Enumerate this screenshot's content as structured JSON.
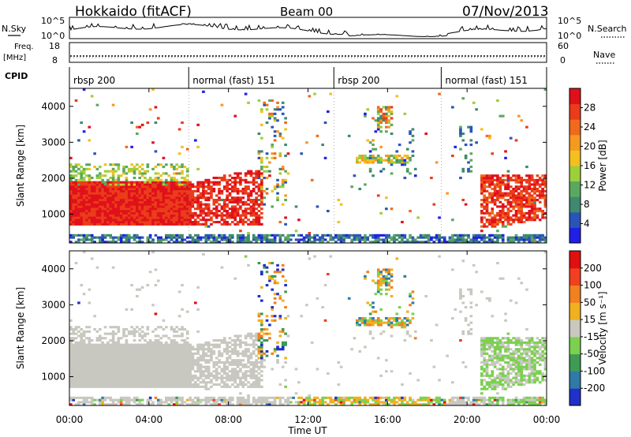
{
  "header": {
    "station": "Hokkaido (fitACF)",
    "beam": "Beam 00",
    "date": "07/Nov/2013"
  },
  "strips": {
    "nsky_label": "N.Sky",
    "nsky_ticks": [
      "10^5",
      "10^0"
    ],
    "nsearch_label": "N.Search",
    "nsearch_ticks": [
      "10^5",
      "10^0"
    ],
    "freq_label": "Freq.",
    "freq_unit": "[MHz]",
    "freq_ticks": [
      "18",
      "8"
    ],
    "nave_label": "Nave",
    "nave_ticks": [
      "60",
      "0"
    ],
    "cpid_label": "CPID"
  },
  "cpid_segments": [
    {
      "label": "rbsp 200",
      "start_hour": 0
    },
    {
      "label": "normal (fast) 151",
      "start_hour": 6
    },
    {
      "label": "rbsp 200",
      "start_hour": 13.3
    },
    {
      "label": "normal (fast) 151",
      "start_hour": 18.7
    }
  ],
  "chart_data": [
    {
      "type": "heatmap",
      "panel": "power",
      "xlabel": "Time UT",
      "ylabel": "Slant Range [km]",
      "xlim": [
        0,
        24
      ],
      "ylim": [
        200,
        4500
      ],
      "x_tick_labels": [
        "00:00",
        "04:00",
        "08:00",
        "12:00",
        "16:00",
        "20:00",
        "00:00"
      ],
      "y_tick_labels": [
        "1000",
        "2000",
        "3000",
        "4000"
      ],
      "colorbar": {
        "label": "Power [dB]",
        "tick_labels": [
          "4",
          "8",
          "12",
          "16",
          "20",
          "24",
          "28"
        ],
        "range": [
          0,
          32
        ],
        "colors": [
          "#1f1fe6",
          "#2a55b8",
          "#3f8a6e",
          "#5aa860",
          "#9ccf3a",
          "#f4c020",
          "#f59a20",
          "#f06a1c",
          "#ea3c1a",
          "#e0101a"
        ]
      }
    },
    {
      "type": "heatmap",
      "panel": "velocity",
      "xlabel": "Time UT",
      "ylabel": "Slant Range [km]",
      "xlim": [
        0,
        24
      ],
      "ylim": [
        200,
        4500
      ],
      "x_tick_labels": [
        "00:00",
        "04:00",
        "08:00",
        "12:00",
        "16:00",
        "20:00",
        "00:00"
      ],
      "y_tick_labels": [
        "1000",
        "2000",
        "3000",
        "4000"
      ],
      "colorbar": {
        "label": "Velocity [m s⁻¹]",
        "tick_labels": [
          "200",
          "100",
          "50",
          "15",
          "-15",
          "-50",
          "-100",
          "-200"
        ],
        "colors": [
          "#2030c8",
          "#2e7aa8",
          "#3f9a55",
          "#7cd050",
          "#c8c8c0",
          "#f0b020",
          "#f08020",
          "#f04020",
          "#e01010"
        ]
      }
    }
  ]
}
